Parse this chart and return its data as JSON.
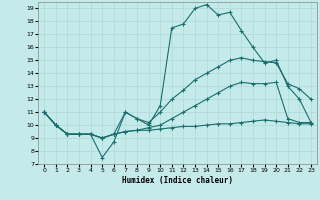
{
  "xlabel": "Humidex (Indice chaleur)",
  "bg_color": "#c5eaea",
  "grid_color": "#afd8d8",
  "line_color": "#1a6e6e",
  "xlim": [
    -0.5,
    23.5
  ],
  "ylim": [
    7,
    19.5
  ],
  "yticks": [
    7,
    8,
    9,
    10,
    11,
    12,
    13,
    14,
    15,
    16,
    17,
    18,
    19
  ],
  "xticks": [
    0,
    1,
    2,
    3,
    4,
    5,
    6,
    7,
    8,
    9,
    10,
    11,
    12,
    13,
    14,
    15,
    16,
    17,
    18,
    19,
    20,
    21,
    22,
    23
  ],
  "lines": [
    {
      "x": [
        0,
        1,
        2,
        3,
        4,
        5,
        6,
        7,
        8,
        9,
        10,
        11,
        12,
        13,
        14,
        15,
        16,
        17,
        18,
        19,
        20,
        21,
        22,
        23
      ],
      "y": [
        11,
        10,
        9.3,
        9.3,
        9.3,
        7.5,
        8.7,
        11.0,
        10.5,
        10.0,
        11.5,
        17.5,
        17.8,
        19.0,
        19.3,
        18.5,
        18.7,
        17.3,
        16.0,
        14.8,
        15.0,
        13.0,
        12.0,
        10.2
      ]
    },
    {
      "x": [
        0,
        1,
        2,
        3,
        4,
        5,
        6,
        7,
        8,
        9,
        10,
        11,
        12,
        13,
        14,
        15,
        16,
        17,
        18,
        19,
        20,
        21,
        22,
        23
      ],
      "y": [
        11,
        10,
        9.3,
        9.3,
        9.3,
        9.0,
        9.3,
        11.0,
        10.5,
        10.2,
        11.0,
        12.0,
        12.7,
        13.5,
        14.0,
        14.5,
        15.0,
        15.2,
        15.0,
        14.9,
        14.8,
        13.2,
        12.8,
        12.0
      ]
    },
    {
      "x": [
        0,
        1,
        2,
        3,
        4,
        5,
        6,
        7,
        8,
        9,
        10,
        11,
        12,
        13,
        14,
        15,
        16,
        17,
        18,
        19,
        20,
        21,
        22,
        23
      ],
      "y": [
        11,
        10,
        9.3,
        9.3,
        9.3,
        9.0,
        9.3,
        9.5,
        9.6,
        9.8,
        10.0,
        10.5,
        11.0,
        11.5,
        12.0,
        12.5,
        13.0,
        13.3,
        13.2,
        13.2,
        13.3,
        10.5,
        10.2,
        10.2
      ]
    },
    {
      "x": [
        0,
        1,
        2,
        3,
        4,
        5,
        6,
        7,
        8,
        9,
        10,
        11,
        12,
        13,
        14,
        15,
        16,
        17,
        18,
        19,
        20,
        21,
        22,
        23
      ],
      "y": [
        11,
        10,
        9.3,
        9.3,
        9.3,
        9.0,
        9.3,
        9.5,
        9.6,
        9.6,
        9.7,
        9.8,
        9.9,
        9.9,
        10.0,
        10.1,
        10.1,
        10.2,
        10.3,
        10.4,
        10.3,
        10.2,
        10.1,
        10.1
      ]
    }
  ]
}
